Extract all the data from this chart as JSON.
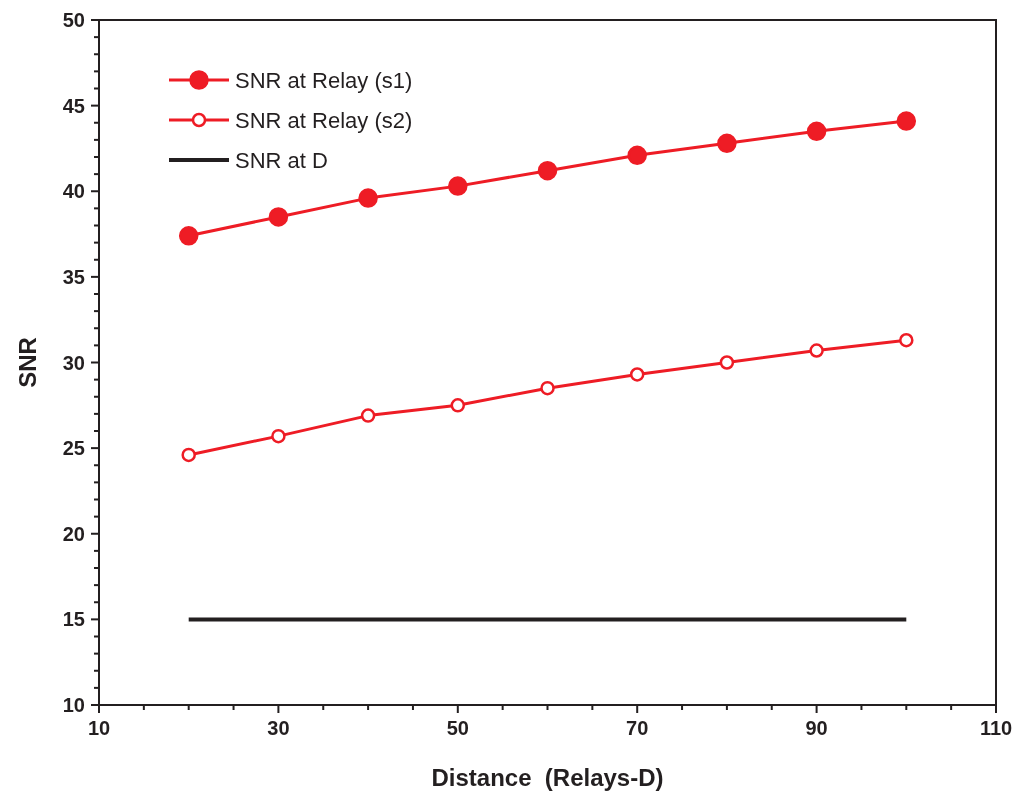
{
  "chart_data": {
    "type": "line",
    "xlabel": "Distance  (Relays-D)",
    "ylabel": "SNR",
    "x": [
      20,
      30,
      40,
      50,
      60,
      70,
      80,
      90,
      100
    ],
    "series": [
      {
        "name": "SNR at Relay (s1)",
        "color": "#ee1c25",
        "marker": "circle",
        "values": [
          37.4,
          38.5,
          39.6,
          40.3,
          41.2,
          42.1,
          42.8,
          43.5,
          44.1
        ]
      },
      {
        "name": "SNR at Relay (s2)",
        "color": "#ee1c25",
        "marker": "circle",
        "values": [
          24.6,
          25.7,
          26.9,
          27.5,
          28.5,
          29.3,
          30.0,
          30.7,
          31.3
        ]
      },
      {
        "name": "SNR at D",
        "color": "#231f20",
        "marker": "none",
        "values": [
          15,
          15,
          15,
          15,
          15,
          15,
          15,
          15,
          15
        ]
      }
    ],
    "xlim": [
      10,
      110
    ],
    "xticks": [
      10,
      {
        "value": 15,
        "label": null
      },
      {
        "value": 20,
        "label": null
      },
      {
        "value": 25,
        "label": null
      },
      30,
      {
        "value": 35,
        "label": null
      },
      {
        "value": 40,
        "label": null
      },
      {
        "value": 45,
        "label": null
      },
      50,
      {
        "value": 55,
        "label": null
      },
      {
        "value": 60,
        "label": null
      },
      {
        "value": 65,
        "label": null
      },
      70,
      {
        "value": 75,
        "label": null
      },
      {
        "value": 80,
        "label": null
      },
      {
        "value": 85,
        "label": null
      },
      90,
      {
        "value": 95,
        "label": null
      },
      {
        "value": 100,
        "label": null
      },
      {
        "value": 105,
        "label": null
      },
      110
    ],
    "ylim": [
      10,
      50
    ],
    "yticks": [
      10,
      {
        "value": 11,
        "label": null
      },
      {
        "value": 12,
        "label": null
      },
      {
        "value": 13,
        "label": null
      },
      {
        "value": 14,
        "label": null
      },
      15,
      {
        "value": 16,
        "label": null
      },
      {
        "value": 17,
        "label": null
      },
      {
        "value": 18,
        "label": null
      },
      {
        "value": 19,
        "label": null
      },
      20,
      {
        "value": 21,
        "label": null
      },
      {
        "value": 22,
        "label": null
      },
      {
        "value": 23,
        "label": null
      },
      {
        "value": 24,
        "label": null
      },
      25,
      {
        "value": 26,
        "label": null
      },
      {
        "value": 27,
        "label": null
      },
      {
        "value": 28,
        "label": null
      },
      {
        "value": 29,
        "label": null
      },
      30,
      {
        "value": 31,
        "label": null
      },
      {
        "value": 32,
        "label": null
      },
      {
        "value": 33,
        "label": null
      },
      {
        "value": 34,
        "label": null
      },
      35,
      {
        "value": 36,
        "label": null
      },
      {
        "value": 37,
        "label": null
      },
      {
        "value": 38,
        "label": null
      },
      {
        "value": 39,
        "label": null
      },
      40,
      {
        "value": 41,
        "label": null
      },
      {
        "value": 42,
        "label": null
      },
      {
        "value": 43,
        "label": null
      },
      {
        "value": 44,
        "label": null
      },
      45,
      {
        "value": 46,
        "label": null
      },
      {
        "value": 47,
        "label": null
      },
      {
        "value": 48,
        "label": null
      },
      {
        "value": 49,
        "label": null
      },
      50
    ],
    "grid": false,
    "legend": "top left",
    "line_style": "solid"
  }
}
